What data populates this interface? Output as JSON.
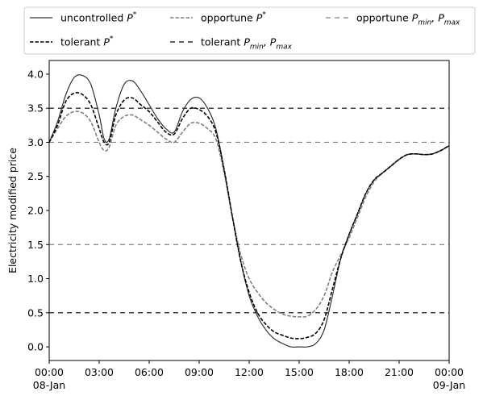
{
  "chart_data": {
    "type": "line",
    "ylabel": "Electricity modified price",
    "xlabel": "",
    "xlim_hours": [
      0,
      24
    ],
    "ylim": [
      -0.2,
      4.2
    ],
    "x_ticks": [
      {
        "hour": 0,
        "label": "00:00",
        "sublabel": "08-Jan"
      },
      {
        "hour": 3,
        "label": "03:00",
        "sublabel": ""
      },
      {
        "hour": 6,
        "label": "06:00",
        "sublabel": ""
      },
      {
        "hour": 9,
        "label": "09:00",
        "sublabel": ""
      },
      {
        "hour": 12,
        "label": "12:00",
        "sublabel": ""
      },
      {
        "hour": 15,
        "label": "15:00",
        "sublabel": ""
      },
      {
        "hour": 18,
        "label": "18:00",
        "sublabel": ""
      },
      {
        "hour": 21,
        "label": "21:00",
        "sublabel": ""
      },
      {
        "hour": 24,
        "label": "00:00",
        "sublabel": "09-Jan"
      }
    ],
    "y_ticks": [
      "0.0",
      "0.5",
      "1.0",
      "1.5",
      "2.0",
      "2.5",
      "3.0",
      "3.5",
      "4.0"
    ],
    "grid": false,
    "legend_position": "top",
    "legend": [
      {
        "key": "uncontrolled",
        "label": "uncontrolled P*"
      },
      {
        "key": "tolerant",
        "label": "tolerant P*"
      },
      {
        "key": "opportune",
        "label": "opportune P*"
      },
      {
        "key": "tolerant_limits",
        "label": "tolerant Pmin, Pmax"
      },
      {
        "key": "opportune_limits",
        "label": "opportune Pmin, Pmax"
      }
    ],
    "series": [
      {
        "key": "uncontrolled",
        "name": "uncontrolled P*",
        "color": "#333333",
        "style": "solid",
        "x": [
          0,
          0.5,
          1,
          1.5,
          2,
          2.5,
          3,
          3.3,
          3.6,
          4,
          4.5,
          5,
          5.5,
          6,
          6.5,
          7,
          7.5,
          8,
          8.5,
          9,
          9.5,
          10,
          10.5,
          11,
          11.5,
          12,
          12.5,
          13,
          13.5,
          14,
          14.5,
          15,
          15.5,
          16,
          16.5,
          17,
          17.5,
          18,
          18.5,
          19,
          19.5,
          20,
          20.5,
          21,
          21.5,
          22,
          22.5,
          23,
          23.5,
          24
        ],
        "values": [
          3.0,
          3.3,
          3.7,
          3.95,
          3.98,
          3.85,
          3.4,
          3.05,
          3.05,
          3.5,
          3.85,
          3.9,
          3.75,
          3.55,
          3.35,
          3.2,
          3.15,
          3.45,
          3.63,
          3.65,
          3.5,
          3.2,
          2.6,
          1.9,
          1.25,
          0.75,
          0.45,
          0.25,
          0.12,
          0.05,
          0.0,
          0.0,
          0.0,
          0.05,
          0.25,
          0.75,
          1.3,
          1.65,
          1.95,
          2.25,
          2.45,
          2.55,
          2.65,
          2.75,
          2.82,
          2.83,
          2.82,
          2.83,
          2.88,
          2.95
        ]
      },
      {
        "key": "tolerant",
        "name": "tolerant P*",
        "color": "#000000",
        "style": "dashed",
        "x": [
          0,
          0.5,
          1,
          1.5,
          2,
          2.5,
          3,
          3.3,
          3.6,
          4,
          4.5,
          5,
          5.5,
          6,
          6.5,
          7,
          7.5,
          8,
          8.5,
          9,
          9.5,
          10,
          10.5,
          11,
          11.5,
          12,
          12.5,
          13,
          13.5,
          14,
          14.5,
          15,
          15.5,
          16,
          16.5,
          17,
          17.5,
          18,
          18.5,
          19,
          19.5,
          20,
          20.5,
          21,
          21.5,
          22,
          22.5,
          23,
          23.5,
          24
        ],
        "values": [
          3.0,
          3.25,
          3.6,
          3.72,
          3.7,
          3.55,
          3.2,
          3.0,
          3.0,
          3.4,
          3.62,
          3.65,
          3.55,
          3.45,
          3.3,
          3.15,
          3.12,
          3.35,
          3.5,
          3.48,
          3.38,
          3.15,
          2.6,
          1.9,
          1.25,
          0.8,
          0.5,
          0.33,
          0.22,
          0.17,
          0.13,
          0.12,
          0.14,
          0.2,
          0.4,
          0.85,
          1.3,
          1.65,
          1.95,
          2.25,
          2.45,
          2.55,
          2.65,
          2.75,
          2.82,
          2.83,
          2.82,
          2.83,
          2.88,
          2.95
        ]
      },
      {
        "key": "opportune",
        "name": "opportune P*",
        "color": "#808080",
        "style": "dashed",
        "x": [
          0,
          0.5,
          1,
          1.5,
          2,
          2.5,
          3,
          3.3,
          3.6,
          4,
          4.5,
          5,
          5.5,
          6,
          6.5,
          7,
          7.5,
          8,
          8.5,
          9,
          9.5,
          10,
          10.5,
          11,
          11.5,
          12,
          12.5,
          13,
          13.5,
          14,
          14.5,
          15,
          15.5,
          16,
          16.5,
          17,
          17.5,
          18,
          18.5,
          19,
          19.5,
          20,
          20.5,
          21,
          21.5,
          22,
          22.5,
          23,
          23.5,
          24
        ],
        "values": [
          3.0,
          3.2,
          3.38,
          3.45,
          3.43,
          3.3,
          3.0,
          2.88,
          2.93,
          3.25,
          3.38,
          3.4,
          3.33,
          3.25,
          3.15,
          3.05,
          3.0,
          3.15,
          3.28,
          3.28,
          3.2,
          3.05,
          2.55,
          1.9,
          1.35,
          1.0,
          0.8,
          0.65,
          0.55,
          0.48,
          0.45,
          0.44,
          0.45,
          0.55,
          0.75,
          1.1,
          1.35,
          1.6,
          1.9,
          2.2,
          2.42,
          2.55,
          2.65,
          2.75,
          2.82,
          2.83,
          2.82,
          2.83,
          2.88,
          2.95
        ]
      }
    ],
    "reference_lines": [
      {
        "key": "tolerant_limits",
        "name": "tolerant Pmin, Pmax",
        "color": "#000000",
        "values": [
          0.5,
          3.5
        ]
      },
      {
        "key": "opportune_limits",
        "name": "opportune Pmin, Pmax",
        "color": "#808080",
        "values": [
          1.5,
          3.0
        ]
      }
    ]
  }
}
